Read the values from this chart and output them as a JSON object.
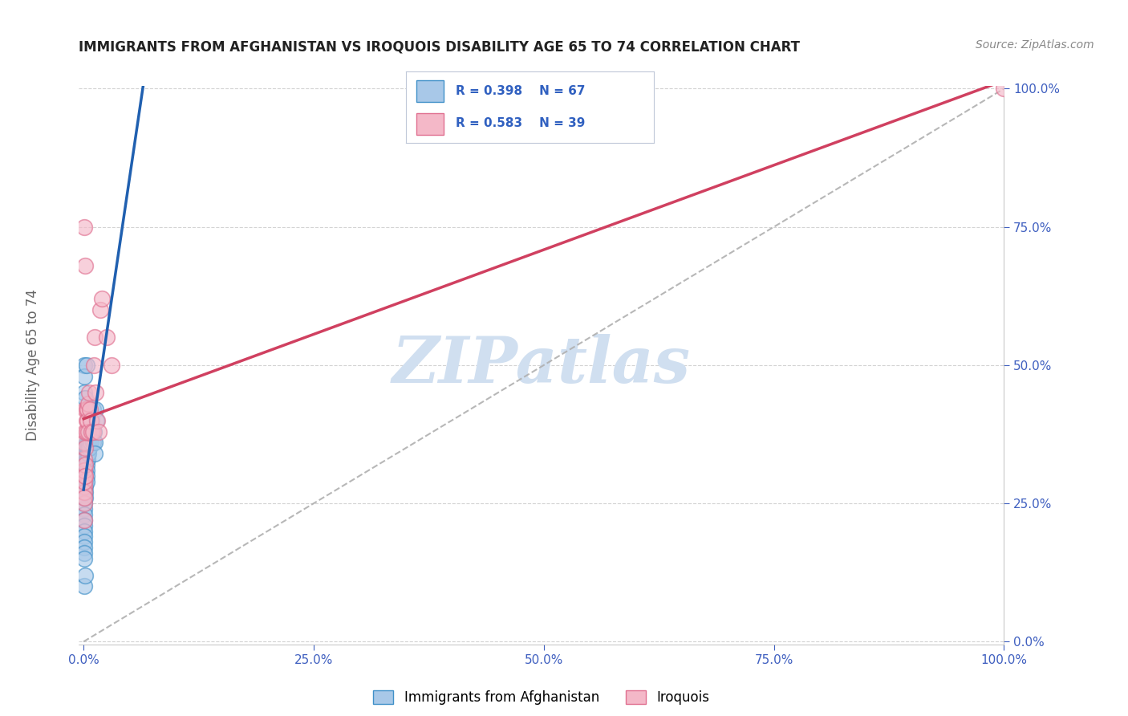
{
  "title": "IMMIGRANTS FROM AFGHANISTAN VS IROQUOIS DISABILITY AGE 65 TO 74 CORRELATION CHART",
  "source": "Source: ZipAtlas.com",
  "ylabel": "Disability Age 65 to 74",
  "xlim": [
    0,
    1
  ],
  "ylim": [
    0,
    1
  ],
  "xticks": [
    0.0,
    0.25,
    0.5,
    0.75,
    1.0
  ],
  "xtick_labels": [
    "0.0%",
    "25.0%",
    "50.0%",
    "75.0%",
    "100.0%"
  ],
  "yticks": [
    0.0,
    0.25,
    0.5,
    0.75,
    1.0
  ],
  "ytick_labels": [
    "0.0%",
    "25.0%",
    "50.0%",
    "75.0%",
    "100.0%"
  ],
  "blue_R": 0.398,
  "blue_N": 67,
  "pink_R": 0.583,
  "pink_N": 39,
  "blue_fill": "#a8c8e8",
  "pink_fill": "#f4b8c8",
  "blue_edge": "#4090c8",
  "pink_edge": "#e07090",
  "blue_line_color": "#2060b0",
  "pink_line_color": "#d04060",
  "watermark": "ZIPatlas",
  "watermark_color": "#d0dff0",
  "legend_text_color": "#3060c0",
  "bg_color": "#ffffff",
  "grid_color": "#c8c8c8",
  "title_color": "#222222",
  "source_color": "#888888",
  "axis_label_color": "#666666",
  "tick_color": "#4060c0",
  "blue_x": [
    0.001,
    0.001,
    0.001,
    0.001,
    0.001,
    0.001,
    0.001,
    0.001,
    0.001,
    0.001,
    0.001,
    0.001,
    0.001,
    0.001,
    0.001,
    0.001,
    0.001,
    0.001,
    0.001,
    0.001,
    0.002,
    0.002,
    0.002,
    0.002,
    0.002,
    0.002,
    0.002,
    0.002,
    0.002,
    0.002,
    0.003,
    0.003,
    0.003,
    0.003,
    0.003,
    0.003,
    0.003,
    0.004,
    0.004,
    0.004,
    0.004,
    0.005,
    0.005,
    0.005,
    0.006,
    0.006,
    0.006,
    0.007,
    0.007,
    0.008,
    0.008,
    0.009,
    0.009,
    0.01,
    0.01,
    0.011,
    0.012,
    0.012,
    0.013,
    0.014,
    0.001,
    0.001,
    0.001,
    0.002,
    0.003,
    0.001,
    0.002
  ],
  "blue_y": [
    0.28,
    0.3,
    0.32,
    0.33,
    0.34,
    0.35,
    0.28,
    0.27,
    0.26,
    0.25,
    0.24,
    0.23,
    0.22,
    0.21,
    0.2,
    0.19,
    0.18,
    0.17,
    0.16,
    0.15,
    0.31,
    0.3,
    0.29,
    0.28,
    0.27,
    0.26,
    0.32,
    0.33,
    0.34,
    0.3,
    0.32,
    0.33,
    0.31,
    0.35,
    0.36,
    0.3,
    0.29,
    0.34,
    0.33,
    0.35,
    0.36,
    0.35,
    0.34,
    0.36,
    0.36,
    0.37,
    0.35,
    0.37,
    0.38,
    0.38,
    0.36,
    0.38,
    0.4,
    0.36,
    0.42,
    0.38,
    0.36,
    0.34,
    0.42,
    0.4,
    0.5,
    0.48,
    0.45,
    0.44,
    0.5,
    0.1,
    0.12
  ],
  "pink_x": [
    0.001,
    0.001,
    0.001,
    0.001,
    0.001,
    0.001,
    0.001,
    0.001,
    0.001,
    0.001,
    0.002,
    0.002,
    0.002,
    0.002,
    0.002,
    0.003,
    0.003,
    0.003,
    0.004,
    0.004,
    0.005,
    0.005,
    0.006,
    0.007,
    0.008,
    0.009,
    0.01,
    0.011,
    0.012,
    0.013,
    0.015,
    0.016,
    0.018,
    0.02,
    0.025,
    0.03,
    0.001,
    0.002,
    1.0
  ],
  "pink_y": [
    0.3,
    0.28,
    0.25,
    0.27,
    0.22,
    0.33,
    0.36,
    0.29,
    0.31,
    0.26,
    0.32,
    0.35,
    0.38,
    0.42,
    0.3,
    0.38,
    0.42,
    0.4,
    0.4,
    0.42,
    0.38,
    0.43,
    0.45,
    0.42,
    0.4,
    0.38,
    0.38,
    0.5,
    0.55,
    0.45,
    0.4,
    0.38,
    0.6,
    0.62,
    0.55,
    0.5,
    0.75,
    0.68,
    1.0
  ]
}
